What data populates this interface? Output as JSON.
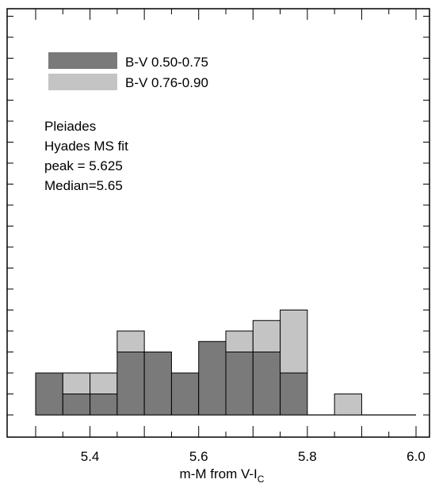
{
  "chart_data": {
    "type": "bar",
    "subtype": "stacked-histogram",
    "xlabel_main": "m-M from V-I",
    "xlabel_sub": "C",
    "ylabel": "",
    "xlim": [
      5.3,
      6.0
    ],
    "ylim": [
      0,
      8
    ],
    "bin_width": 0.05,
    "x_ticks": [
      5.4,
      5.6,
      5.8,
      6.0
    ],
    "x_tick_labels": [
      "5.4",
      "5.6",
      "5.8",
      "6.0"
    ],
    "bins": [
      5.3,
      5.35,
      5.4,
      5.45,
      5.5,
      5.55,
      5.6,
      5.65,
      5.7,
      5.75,
      5.8,
      5.85,
      5.9,
      5.95
    ],
    "series": [
      {
        "name": "B-V 0.50-0.75",
        "color": "#7a7a7a",
        "values": [
          2,
          1,
          1,
          3,
          3,
          2,
          3.5,
          3,
          3,
          2,
          0,
          0,
          0,
          0
        ]
      },
      {
        "name": "B-V 0.76-0.90",
        "color": "#c4c4c4",
        "values": [
          0,
          1,
          1,
          1,
          0,
          0,
          0,
          1,
          1.5,
          3,
          0,
          1,
          0,
          0
        ]
      }
    ],
    "legend_position": "top-left",
    "annotations": [
      "Pleiades",
      "Hyades MS fit",
      "peak = 5.625",
      "Median=5.65"
    ],
    "grid": false
  }
}
